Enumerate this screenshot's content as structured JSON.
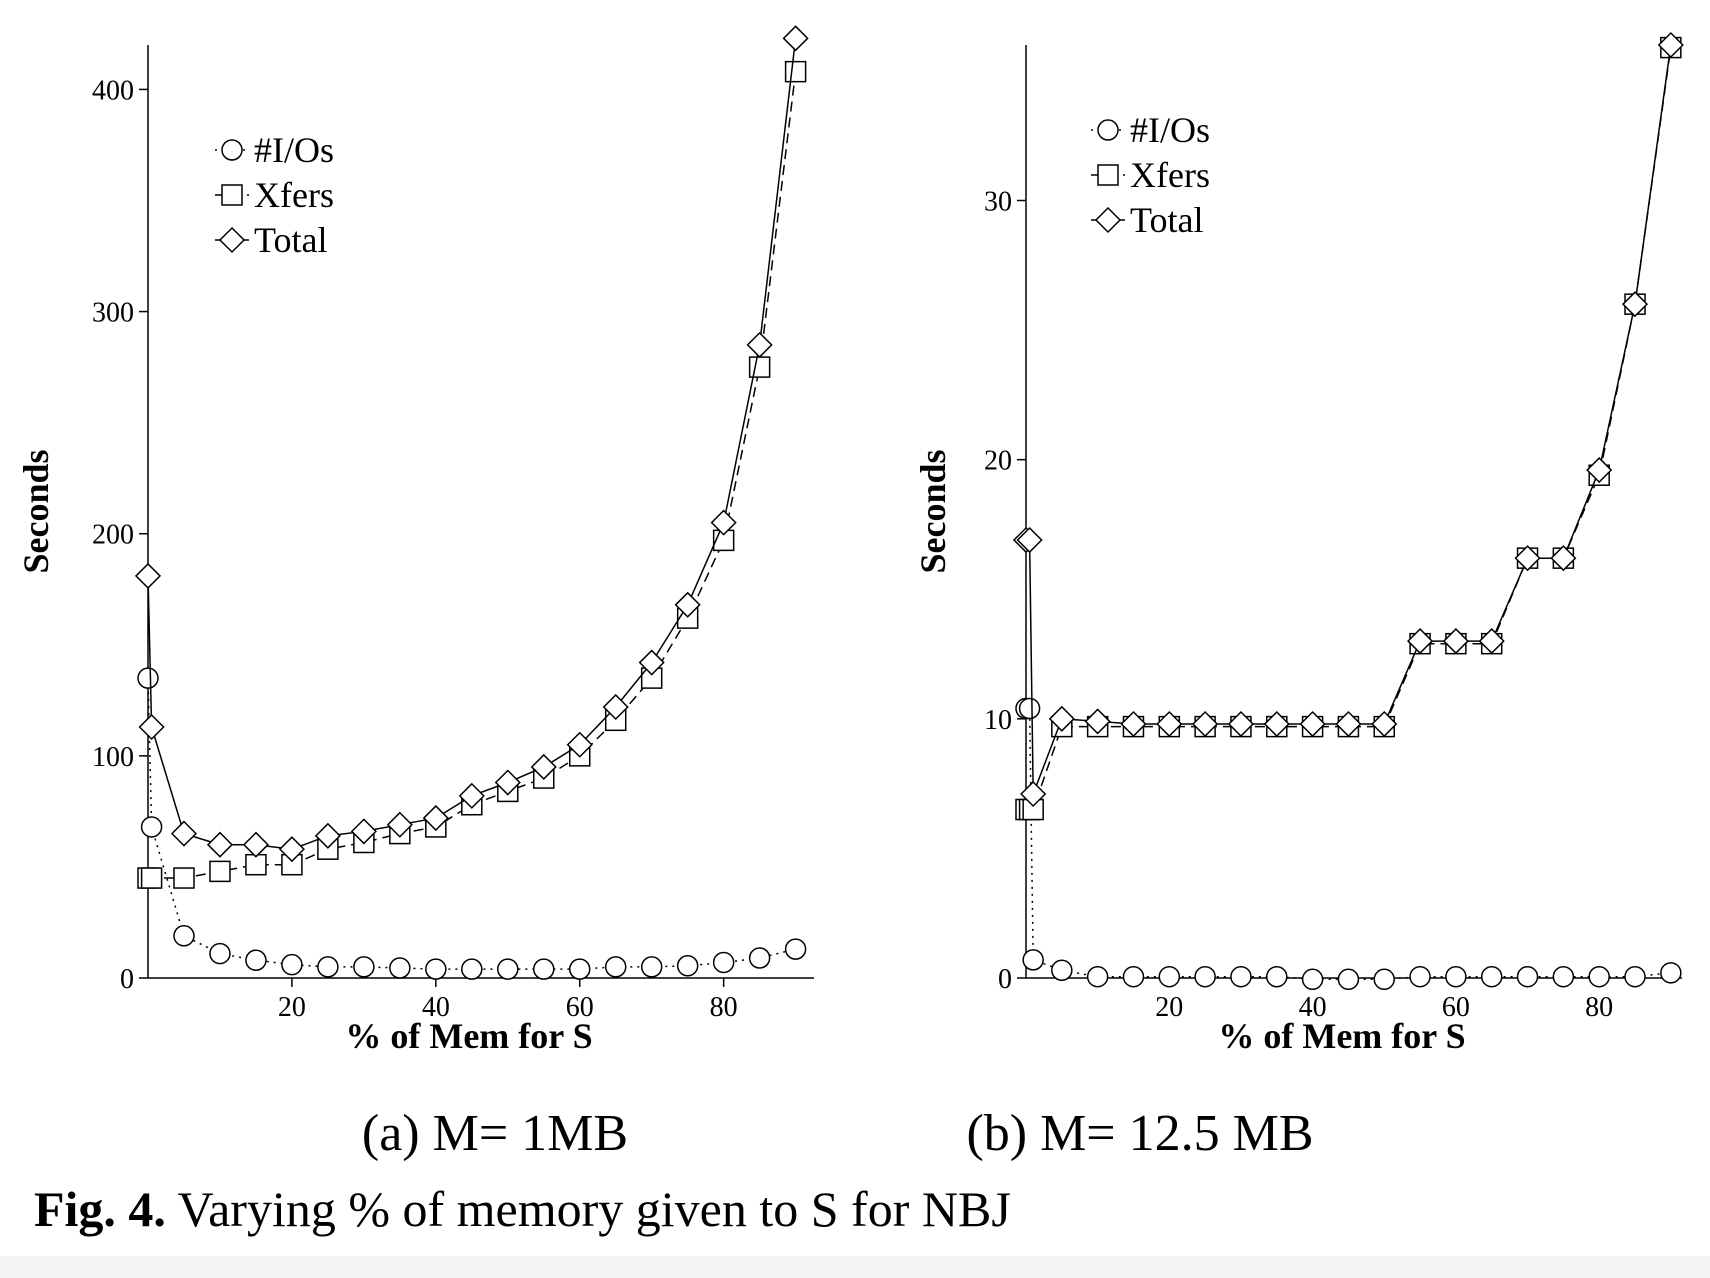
{
  "caption": {
    "label": "Fig. 4.",
    "text": "Varying % of memory given to S for NBJ"
  },
  "chart_data": [
    {
      "type": "line",
      "subcaption": "(a) M= 1MB",
      "xlabel": "% of Mem for S",
      "ylabel": "Seconds",
      "xlim": [
        0,
        92
      ],
      "ylim": [
        0,
        420
      ],
      "xticks": [
        20,
        40,
        60,
        80
      ],
      "yticks": [
        0,
        100,
        200,
        300,
        400
      ],
      "legend_position": "top-left",
      "grid": false,
      "series": [
        {
          "name": "#I/Os",
          "marker": "circle",
          "linestyle": "dotted",
          "x": [
            0,
            0.5,
            5,
            10,
            15,
            20,
            25,
            30,
            35,
            40,
            45,
            50,
            55,
            60,
            65,
            70,
            75,
            80,
            85,
            90
          ],
          "y": [
            135,
            68,
            19,
            11,
            8,
            6,
            5,
            5,
            4.5,
            4,
            4,
            4,
            4,
            4,
            5,
            5,
            5.5,
            7,
            9,
            13
          ]
        },
        {
          "name": "Xfers",
          "marker": "square",
          "linestyle": "dashed",
          "x": [
            0,
            0.5,
            5,
            10,
            15,
            20,
            25,
            30,
            35,
            40,
            45,
            50,
            55,
            60,
            65,
            70,
            75,
            80,
            85,
            90
          ],
          "y": [
            45,
            45,
            45,
            48,
            51,
            51,
            58,
            61,
            65,
            68,
            78,
            84,
            90,
            100,
            116,
            135,
            162,
            197,
            275,
            408
          ]
        },
        {
          "name": "Total",
          "marker": "diamond",
          "linestyle": "solid",
          "x": [
            0,
            0.5,
            5,
            10,
            15,
            20,
            25,
            30,
            35,
            40,
            45,
            50,
            55,
            60,
            65,
            70,
            75,
            80,
            85,
            90
          ],
          "y": [
            181,
            113,
            65,
            60,
            60,
            58,
            64,
            66,
            69,
            72,
            82,
            88,
            95,
            105,
            122,
            142,
            168,
            205,
            285,
            423
          ]
        }
      ]
    },
    {
      "type": "line",
      "subcaption": "(b) M= 12.5 MB",
      "xlabel": "% of Mem for S",
      "ylabel": "Seconds",
      "xlim": [
        0,
        91
      ],
      "ylim": [
        0,
        36
      ],
      "xticks": [
        20,
        40,
        60,
        80
      ],
      "yticks": [
        0,
        10,
        20,
        30
      ],
      "legend_position": "top-left",
      "grid": false,
      "series": [
        {
          "name": "#I/Os",
          "marker": "circle",
          "linestyle": "dotted",
          "x": [
            0,
            0.5,
            1,
            5,
            10,
            15,
            20,
            25,
            30,
            35,
            40,
            45,
            50,
            55,
            60,
            65,
            70,
            75,
            80,
            85,
            90
          ],
          "y": [
            10.4,
            10.4,
            0.7,
            0.3,
            0.05,
            0.05,
            0.05,
            0.05,
            0.05,
            0.05,
            -0.05,
            -0.05,
            -0.05,
            0.05,
            0.05,
            0.05,
            0.05,
            0.05,
            0.05,
            0.05,
            0.2
          ]
        },
        {
          "name": "Xfers",
          "marker": "square",
          "linestyle": "dashed",
          "x": [
            0,
            0.5,
            1,
            5,
            10,
            15,
            20,
            25,
            30,
            35,
            40,
            45,
            50,
            55,
            60,
            65,
            70,
            75,
            80,
            85,
            90
          ],
          "y": [
            6.5,
            6.5,
            6.5,
            9.7,
            9.7,
            9.7,
            9.7,
            9.7,
            9.7,
            9.7,
            9.7,
            9.7,
            9.7,
            12.9,
            12.9,
            12.9,
            16.2,
            16.2,
            19.4,
            26,
            35.9
          ]
        },
        {
          "name": "Total",
          "marker": "diamond",
          "linestyle": "solid",
          "x": [
            0,
            0.5,
            1,
            5,
            10,
            15,
            20,
            25,
            30,
            35,
            40,
            45,
            50,
            55,
            60,
            65,
            70,
            75,
            80,
            85,
            90
          ],
          "y": [
            16.9,
            16.9,
            7.1,
            10,
            9.9,
            9.8,
            9.8,
            9.8,
            9.8,
            9.8,
            9.8,
            9.8,
            9.8,
            13,
            13,
            13,
            16.2,
            16.2,
            19.6,
            26,
            36
          ]
        }
      ]
    }
  ]
}
